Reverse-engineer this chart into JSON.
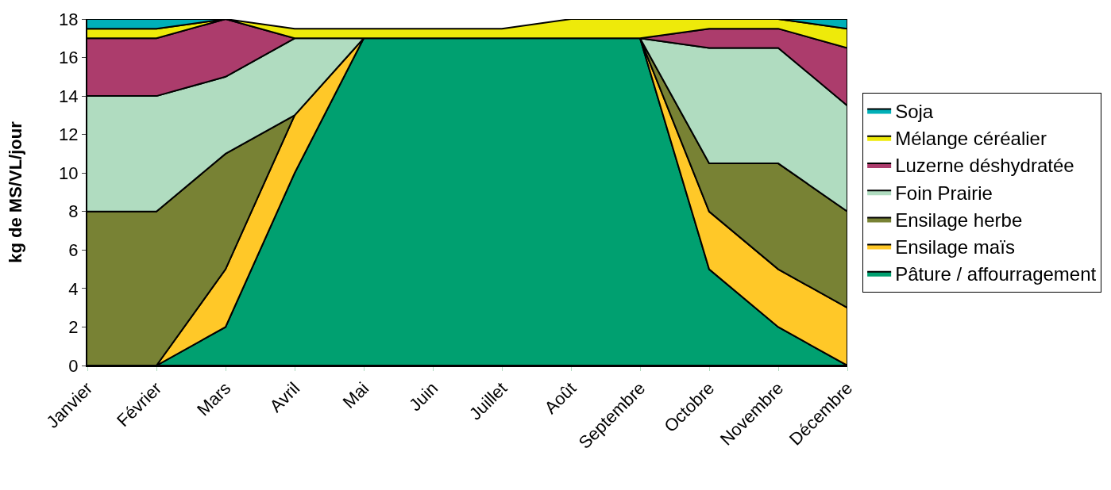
{
  "chart_data": {
    "type": "area",
    "stacked": true,
    "ylabel": "kg de MS/VL/jour",
    "categories": [
      "Janvier",
      "Février",
      "Mars",
      "Avril",
      "Mai",
      "Juin",
      "Juillet",
      "Août",
      "Septembre",
      "Octobre",
      "Novembre",
      "Décembre"
    ],
    "series": [
      {
        "name": "Pâture / affourragement",
        "color": "#00a070",
        "values": [
          null,
          0,
          2,
          10,
          17,
          17,
          17,
          17,
          17,
          5,
          2,
          0
        ]
      },
      {
        "name": "Ensilage maïs",
        "color": "#ffc828",
        "values": [
          null,
          0,
          3,
          3,
          0,
          null,
          null,
          null,
          0,
          3,
          3,
          3
        ]
      },
      {
        "name": "Ensilage herbe",
        "color": "#788234",
        "values": [
          8,
          8,
          6,
          0,
          null,
          null,
          null,
          null,
          0,
          2.5,
          5.5,
          5
        ]
      },
      {
        "name": "Foin Prairie",
        "color": "#b0dcc0",
        "values": [
          6,
          6,
          4,
          4,
          0,
          null,
          null,
          null,
          0,
          6,
          6,
          5.5
        ]
      },
      {
        "name": "Luzerne déshydratée",
        "color": "#ac3c6c",
        "values": [
          3,
          3,
          3,
          0,
          null,
          null,
          null,
          null,
          0,
          1,
          1,
          3
        ]
      },
      {
        "name": "Mélange céréalier",
        "color": "#eeea0a",
        "values": [
          0.5,
          0.5,
          0,
          0.5,
          0.5,
          0.5,
          0.5,
          1,
          1,
          0.5,
          0.5,
          1
        ]
      },
      {
        "name": "Soja",
        "color": "#00b0b8",
        "values": [
          0.5,
          0.5,
          0,
          null,
          null,
          null,
          null,
          null,
          null,
          null,
          0,
          0.5
        ]
      }
    ],
    "ylim": [
      0,
      18
    ],
    "yticks": [
      0,
      2,
      4,
      6,
      8,
      10,
      12,
      14,
      16,
      18
    ],
    "legend": "right"
  }
}
